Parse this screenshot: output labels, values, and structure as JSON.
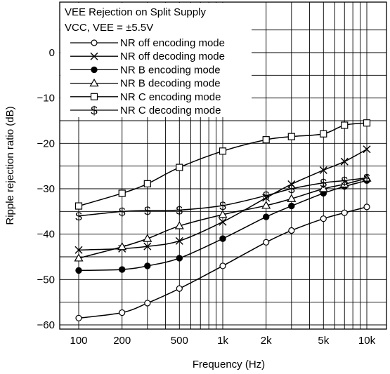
{
  "chart_data": {
    "type": "line",
    "title_line1": "VEE Rejection on Split Supply",
    "title_line2": "VCC, VEE = ±5.5V",
    "xlabel": "Frequency (Hz)",
    "ylabel": "Ripple rejection ratio (dB)",
    "x_scale": "log",
    "xlim": [
      100,
      10000
    ],
    "ylim": [
      -60,
      10
    ],
    "x_ticks": [
      {
        "value": 100,
        "label": "100"
      },
      {
        "value": 200,
        "label": "200"
      },
      {
        "value": 500,
        "label": "500"
      },
      {
        "value": 1000,
        "label": "1k"
      },
      {
        "value": 2000,
        "label": "2k"
      },
      {
        "value": 5000,
        "label": "5k"
      },
      {
        "value": 10000,
        "label": "10k"
      }
    ],
    "y_ticks": [
      {
        "value": 0,
        "label": "0"
      },
      {
        "value": -10,
        "label": "−10"
      },
      {
        "value": -20,
        "label": "−20"
      },
      {
        "value": -30,
        "label": "−30"
      },
      {
        "value": -40,
        "label": "−40"
      },
      {
        "value": -50,
        "label": "−50"
      },
      {
        "value": -60,
        "label": "−60"
      }
    ],
    "grid": true,
    "legend_position": "top-left",
    "series": [
      {
        "name": "NR off encoding mode",
        "marker": "open-circle",
        "x": [
          100,
          200,
          300,
          500,
          1000,
          2000,
          3000,
          5000,
          7000,
          10000
        ],
        "y": [
          -58.5,
          -57.3,
          -55.2,
          -52.0,
          -47.0,
          -41.8,
          -39.2,
          -36.6,
          -35.3,
          -34.0
        ]
      },
      {
        "name": "NR off decoding mode",
        "marker": "x",
        "x": [
          100,
          200,
          300,
          500,
          1000,
          2000,
          3000,
          5000,
          7000,
          10000
        ],
        "y": [
          -43.5,
          -43.2,
          -42.7,
          -41.5,
          -37.3,
          -32.0,
          -29.0,
          -25.9,
          -24.0,
          -21.3
        ]
      },
      {
        "name": "NR B encoding mode",
        "marker": "filled-circle",
        "x": [
          100,
          200,
          300,
          500,
          1000,
          2000,
          3000,
          5000,
          7000,
          10000
        ],
        "y": [
          -48.0,
          -47.8,
          -47.0,
          -45.3,
          -41.0,
          -36.2,
          -33.8,
          -31.0,
          -29.5,
          -28.2
        ]
      },
      {
        "name": "NR B decoding mode",
        "marker": "triangle",
        "x": [
          100,
          200,
          300,
          500,
          1000,
          2000,
          3000,
          5000,
          7000,
          10000
        ],
        "y": [
          -45.3,
          -42.8,
          -41.0,
          -38.2,
          -35.7,
          -33.7,
          -32.2,
          -30.0,
          -29.0,
          -27.7
        ]
      },
      {
        "name": "NR C encoding mode",
        "marker": "square",
        "x": [
          100,
          200,
          300,
          500,
          1000,
          2000,
          3000,
          5000,
          7000,
          10000
        ],
        "y": [
          -33.8,
          -31.0,
          -28.9,
          -25.3,
          -21.7,
          -19.2,
          -18.5,
          -17.9,
          -16.0,
          -15.5
        ]
      },
      {
        "name": "NR C decoding mode",
        "marker": "dollar",
        "x": [
          100,
          200,
          300,
          500,
          1000,
          2000,
          3000,
          5000,
          7000,
          10000
        ],
        "y": [
          -36.0,
          -35.0,
          -34.8,
          -34.7,
          -33.7,
          -31.5,
          -30.0,
          -28.7,
          -28.2,
          -27.6
        ]
      }
    ]
  }
}
